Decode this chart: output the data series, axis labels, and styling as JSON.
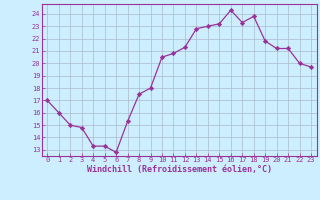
{
  "x": [
    0,
    1,
    2,
    3,
    4,
    5,
    6,
    7,
    8,
    9,
    10,
    11,
    12,
    13,
    14,
    15,
    16,
    17,
    18,
    19,
    20,
    21,
    22,
    23
  ],
  "y": [
    17.0,
    16.0,
    15.0,
    14.8,
    13.3,
    13.3,
    12.8,
    15.3,
    17.5,
    18.0,
    20.5,
    20.8,
    21.3,
    22.8,
    23.0,
    23.2,
    24.3,
    23.3,
    23.8,
    21.8,
    21.2,
    21.2,
    20.0,
    19.7
  ],
  "line_color": "#993399",
  "marker": "D",
  "markersize": 2.2,
  "linewidth": 0.9,
  "background_color": "#cceeff",
  "grid_color": "#aabbcc",
  "xlabel": "Windchill (Refroidissement éolien,°C)",
  "xlim": [
    -0.5,
    23.5
  ],
  "ylim": [
    12.5,
    24.8
  ],
  "yticks": [
    13,
    14,
    15,
    16,
    17,
    18,
    19,
    20,
    21,
    22,
    23,
    24
  ],
  "xticks": [
    0,
    1,
    2,
    3,
    4,
    5,
    6,
    7,
    8,
    9,
    10,
    11,
    12,
    13,
    14,
    15,
    16,
    17,
    18,
    19,
    20,
    21,
    22,
    23
  ],
  "tick_color": "#993399",
  "tick_fontsize": 5.0,
  "xlabel_fontsize": 6.0,
  "xlabel_color": "#993399",
  "spine_color": "#993399"
}
